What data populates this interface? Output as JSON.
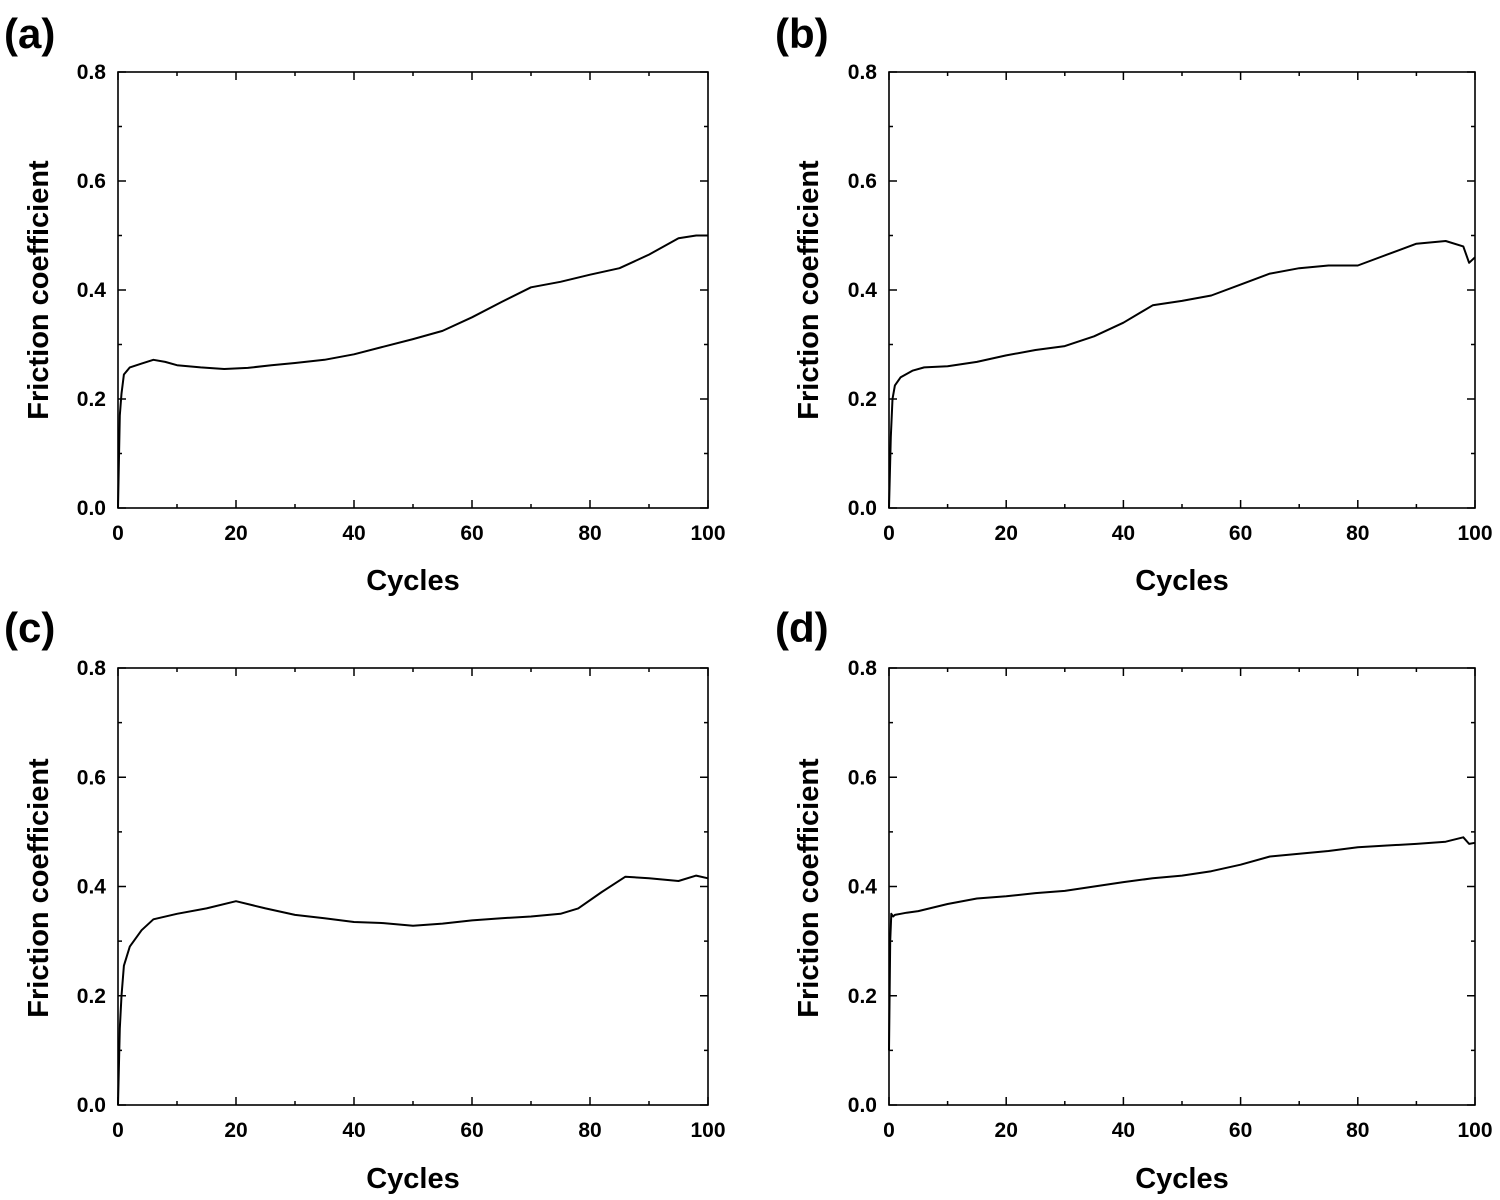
{
  "chart_data": [
    {
      "type": "line",
      "panel_label": "(a)",
      "xlabel": "Cycles",
      "ylabel": "Friction coefficient",
      "xlim": [
        0,
        100
      ],
      "ylim": [
        0,
        0.8
      ],
      "xticks": [
        "0",
        "20",
        "40",
        "60",
        "80",
        "100"
      ],
      "yticks": [
        "0.0",
        "0.2",
        "0.4",
        "0.6",
        "0.8"
      ],
      "series": [
        {
          "x": [
            0,
            0.3,
            0.6,
            1,
            2,
            4,
            6,
            8,
            10,
            14,
            18,
            22,
            26,
            30,
            35,
            40,
            45,
            50,
            55,
            60,
            65,
            70,
            75,
            80,
            85,
            90,
            95,
            98,
            100
          ],
          "y": [
            0.0,
            0.17,
            0.21,
            0.245,
            0.258,
            0.265,
            0.272,
            0.268,
            0.262,
            0.258,
            0.255,
            0.257,
            0.262,
            0.266,
            0.272,
            0.282,
            0.296,
            0.31,
            0.325,
            0.35,
            0.378,
            0.405,
            0.415,
            0.428,
            0.44,
            0.465,
            0.495,
            0.5,
            0.5
          ]
        }
      ]
    },
    {
      "type": "line",
      "panel_label": "(b)",
      "xlabel": "Cycles",
      "ylabel": "Friction coefficient",
      "xlim": [
        0,
        100
      ],
      "ylim": [
        0,
        0.8
      ],
      "xticks": [
        "0",
        "20",
        "40",
        "60",
        "80",
        "100"
      ],
      "yticks": [
        "0.0",
        "0.2",
        "0.4",
        "0.6",
        "0.8"
      ],
      "series": [
        {
          "x": [
            0,
            0.3,
            0.6,
            1,
            2,
            4,
            6,
            10,
            15,
            20,
            25,
            30,
            35,
            40,
            45,
            50,
            55,
            60,
            65,
            70,
            75,
            80,
            85,
            90,
            95,
            98,
            99,
            100
          ],
          "y": [
            0.0,
            0.13,
            0.2,
            0.225,
            0.24,
            0.252,
            0.258,
            0.26,
            0.268,
            0.28,
            0.29,
            0.297,
            0.315,
            0.34,
            0.372,
            0.38,
            0.39,
            0.41,
            0.43,
            0.44,
            0.445,
            0.445,
            0.465,
            0.485,
            0.49,
            0.48,
            0.45,
            0.46
          ]
        }
      ]
    },
    {
      "type": "line",
      "panel_label": "(c)",
      "xlabel": "Cycles",
      "ylabel": "Friction coefficient",
      "xlim": [
        0,
        100
      ],
      "ylim": [
        0,
        0.8
      ],
      "xticks": [
        "0",
        "20",
        "40",
        "60",
        "80",
        "100"
      ],
      "yticks": [
        "0.0",
        "0.2",
        "0.4",
        "0.6",
        "0.8"
      ],
      "series": [
        {
          "x": [
            0,
            0.3,
            0.6,
            1,
            2,
            4,
            6,
            10,
            15,
            20,
            25,
            30,
            35,
            40,
            45,
            50,
            55,
            60,
            65,
            70,
            75,
            78,
            82,
            86,
            90,
            95,
            98,
            100
          ],
          "y": [
            0.0,
            0.14,
            0.2,
            0.255,
            0.29,
            0.32,
            0.34,
            0.35,
            0.36,
            0.373,
            0.36,
            0.348,
            0.342,
            0.335,
            0.333,
            0.328,
            0.332,
            0.338,
            0.342,
            0.345,
            0.35,
            0.36,
            0.39,
            0.418,
            0.415,
            0.41,
            0.42,
            0.415
          ]
        }
      ]
    },
    {
      "type": "line",
      "panel_label": "(d)",
      "xlabel": "Cycles",
      "ylabel": "Friction coefficient",
      "xlim": [
        0,
        100
      ],
      "ylim": [
        0,
        0.8
      ],
      "xticks": [
        "0",
        "20",
        "40",
        "60",
        "80",
        "100"
      ],
      "yticks": [
        "0.0",
        "0.2",
        "0.4",
        "0.6",
        "0.8"
      ],
      "series": [
        {
          "x": [
            0,
            0.2,
            0.4,
            0.7,
            1,
            2,
            3,
            5,
            10,
            15,
            20,
            25,
            30,
            35,
            40,
            45,
            50,
            55,
            60,
            65,
            70,
            75,
            80,
            85,
            90,
            95,
            98,
            99,
            100
          ],
          "y": [
            0.1,
            0.3,
            0.35,
            0.345,
            0.348,
            0.35,
            0.352,
            0.355,
            0.368,
            0.378,
            0.382,
            0.388,
            0.392,
            0.4,
            0.408,
            0.415,
            0.42,
            0.428,
            0.44,
            0.455,
            0.46,
            0.465,
            0.472,
            0.475,
            0.478,
            0.482,
            0.49,
            0.478,
            0.48
          ]
        }
      ]
    }
  ]
}
